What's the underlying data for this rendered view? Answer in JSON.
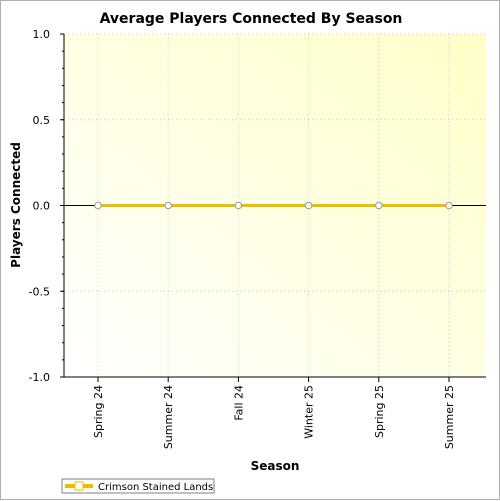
{
  "chart_data": {
    "type": "line",
    "title": "Average Players Connected By Season",
    "xlabel": "Season",
    "ylabel": "Players Connected",
    "categories": [
      "Spring 24",
      "Summer 24",
      "Fall 24",
      "Winter 25",
      "Spring 25",
      "Summer 25"
    ],
    "series": [
      {
        "name": "Crimson Stained Lands",
        "values": [
          0,
          0,
          0,
          0,
          0,
          0
        ],
        "color": "#e8c000"
      }
    ],
    "ylim": [
      -1.0,
      1.0
    ],
    "yticks": [
      "1.0",
      "0.5",
      "0.0",
      "-0.5",
      "-1.0"
    ],
    "grid": true,
    "legend": "bottom-left",
    "plot_background": [
      "#ffffe0",
      "#ffffff"
    ]
  }
}
